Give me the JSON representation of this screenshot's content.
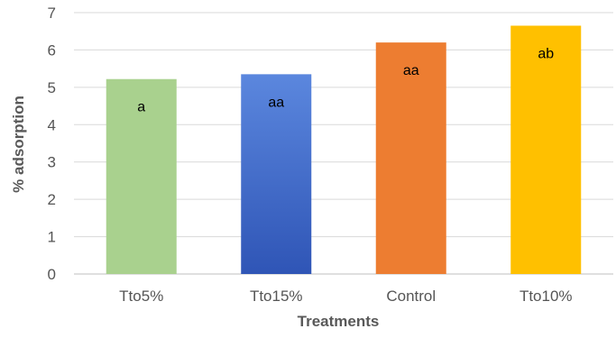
{
  "chart_data": {
    "type": "bar",
    "title": "",
    "xlabel": "Treatments",
    "ylabel": "% adsorption",
    "ylim": [
      0,
      7
    ],
    "yticks": [
      0,
      1,
      2,
      3,
      4,
      5,
      6,
      7
    ],
    "grid": "horizontal",
    "legend": "none",
    "categories": [
      "Tto5%",
      "Tto15%",
      "Control",
      "Tto10%"
    ],
    "values": [
      5.22,
      5.35,
      6.2,
      6.65
    ],
    "data_labels": [
      "a",
      "aa",
      "aa",
      "ab"
    ],
    "colors": [
      "#a9d18e",
      "#3b64c6",
      "#ed7d31",
      "#ffc000"
    ]
  }
}
